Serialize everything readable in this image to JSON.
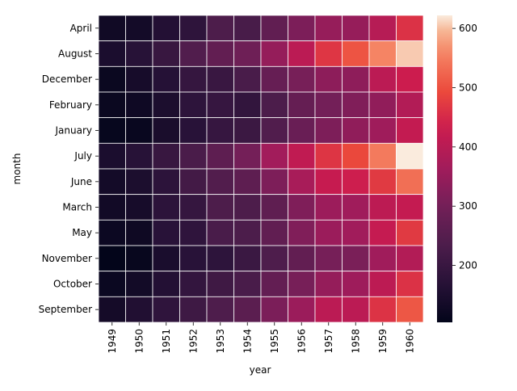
{
  "chart_data": {
    "type": "heatmap",
    "xlabel": "year",
    "ylabel": "month",
    "x": [
      "1949",
      "1950",
      "1951",
      "1952",
      "1953",
      "1954",
      "1955",
      "1956",
      "1957",
      "1958",
      "1959",
      "1960"
    ],
    "y": [
      "April",
      "August",
      "December",
      "February",
      "January",
      "July",
      "June",
      "March",
      "May",
      "November",
      "October",
      "September"
    ],
    "values": [
      [
        129,
        135,
        163,
        181,
        235,
        227,
        269,
        313,
        348,
        348,
        396,
        461
      ],
      [
        148,
        170,
        199,
        242,
        272,
        293,
        347,
        405,
        467,
        505,
        559,
        606
      ],
      [
        118,
        140,
        166,
        194,
        201,
        229,
        278,
        306,
        336,
        337,
        405,
        432
      ],
      [
        118,
        126,
        150,
        180,
        196,
        188,
        233,
        277,
        301,
        318,
        342,
        391
      ],
      [
        112,
        115,
        145,
        171,
        196,
        204,
        242,
        284,
        315,
        340,
        360,
        417
      ],
      [
        148,
        170,
        199,
        230,
        264,
        302,
        364,
        413,
        465,
        491,
        548,
        622
      ],
      [
        135,
        149,
        178,
        218,
        243,
        264,
        315,
        374,
        422,
        435,
        472,
        535
      ],
      [
        132,
        141,
        178,
        193,
        236,
        235,
        267,
        317,
        356,
        362,
        406,
        419
      ],
      [
        121,
        125,
        172,
        183,
        229,
        234,
        270,
        318,
        355,
        363,
        420,
        472
      ],
      [
        104,
        114,
        146,
        172,
        180,
        203,
        237,
        271,
        305,
        310,
        362,
        390
      ],
      [
        119,
        133,
        162,
        191,
        211,
        229,
        274,
        306,
        347,
        359,
        407,
        461
      ],
      [
        136,
        158,
        184,
        209,
        237,
        259,
        312,
        355,
        404,
        404,
        463,
        508
      ]
    ],
    "colorbar": {
      "min": 104,
      "max": 622,
      "ticks": [
        "200",
        "300",
        "400",
        "500",
        "600"
      ],
      "tick_values": [
        200,
        300,
        400,
        500,
        600
      ]
    },
    "colormap": "rocket",
    "grid": true
  }
}
